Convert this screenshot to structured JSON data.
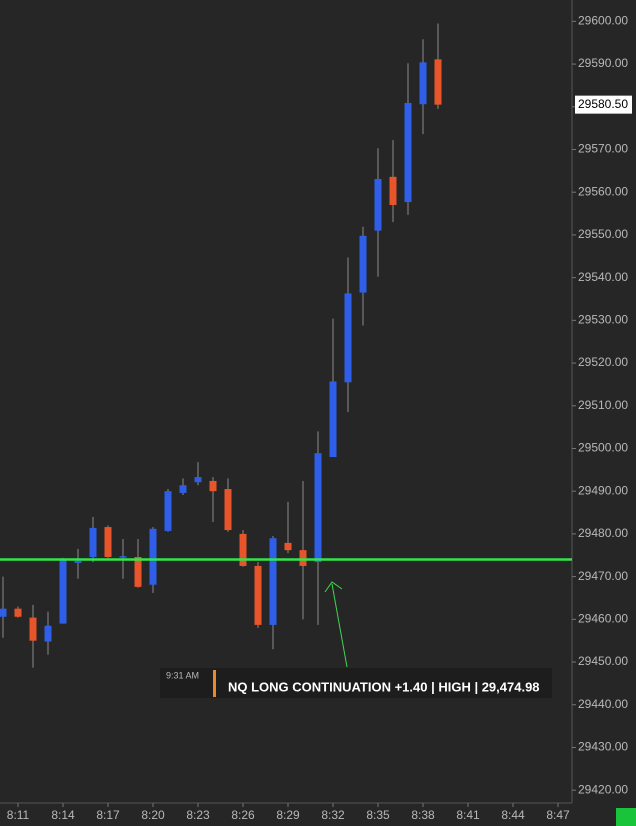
{
  "chart_data": {
    "type": "candlestick",
    "categories": [
      null,
      "8:11",
      null,
      null,
      "8:14",
      null,
      null,
      "8:17",
      null,
      null,
      "8:20",
      null,
      null,
      "8:23",
      null,
      null,
      "8:26",
      null,
      null,
      "8:29",
      null,
      null,
      "8:32",
      null,
      null,
      "8:35",
      null,
      null,
      "8:38",
      null,
      null,
      "8:41",
      null,
      null,
      "8:44",
      null,
      null,
      "8:47"
    ],
    "open": [
      29460.6,
      29462.5,
      29460.4,
      29454.8,
      29459,
      29473.2,
      29474.6,
      29481.6,
      29474.6,
      29474.6,
      29468.1,
      29480.7,
      29489.6,
      29492.1,
      29492.4,
      29490.5,
      29480,
      29472.5,
      29458.7,
      29477.9,
      29476.2,
      29473.4,
      29498,
      29515.5,
      29536.5,
      29551,
      29563.6,
      29557.7,
      29580.6,
      29591.1,
      null,
      null,
      null,
      null,
      null,
      null,
      null,
      null
    ],
    "high": [
      29470,
      29463,
      29463.4,
      29461.8,
      29474.4,
      29476.5,
      29484,
      29482,
      29478.8,
      29478.8,
      29481.6,
      29490.5,
      29493,
      29496.8,
      29493.3,
      29493,
      29480.9,
      29473.4,
      29479.5,
      29487.5,
      29492.4,
      29504,
      29530.4,
      29544.7,
      29551.9,
      29570.3,
      29572.2,
      29590.2,
      29595.8,
      29599.5,
      null,
      null,
      null,
      null,
      null,
      null,
      null,
      null
    ],
    "low": [
      29455.7,
      29460.4,
      29448.7,
      29451.7,
      29459,
      29469.5,
      29473.4,
      29474.4,
      29469.5,
      29467.4,
      29466.2,
      29480.5,
      29489.1,
      29491.4,
      29482.8,
      29480.5,
      29472.3,
      29458,
      29453,
      29475.5,
      29460,
      29458.7,
      29498,
      29508.5,
      29528.8,
      29540.2,
      29553,
      29554.7,
      29573.6,
      29579.5,
      null,
      null,
      null,
      null,
      null,
      null,
      null,
      null
    ],
    "close": [
      29462.5,
      29460.6,
      29455,
      29458.5,
      29473.9,
      29473.7,
      29481.4,
      29474.6,
      29474.8,
      29467.6,
      29481.2,
      29490,
      29491.4,
      29493.3,
      29490,
      29480.9,
      29472.5,
      29458.7,
      29479,
      29476.2,
      29472.5,
      29498.9,
      29515.7,
      29536.3,
      29549.8,
      29563.1,
      29557,
      29580.9,
      29590.4,
      29580.5,
      null,
      null,
      null,
      null,
      null,
      null,
      null,
      null
    ],
    "up_color": "#2f5fe8",
    "down_color": "#e8552a",
    "wick_color": "#8a8a8a",
    "ylim": [
      29417,
      29605
    ],
    "yticks": [
      {
        "value": 29420,
        "label": "29420.00"
      },
      {
        "value": 29430,
        "label": "29430.00"
      },
      {
        "value": 29440,
        "label": "29440.00"
      },
      {
        "value": 29450,
        "label": "29450.00"
      },
      {
        "value": 29460,
        "label": "29460.00"
      },
      {
        "value": 29470,
        "label": "29470.00"
      },
      {
        "value": 29480,
        "label": "29480.00"
      },
      {
        "value": 29490,
        "label": "29490.00"
      },
      {
        "value": 29500,
        "label": "29500.00"
      },
      {
        "value": 29510,
        "label": "29510.00"
      },
      {
        "value": 29520,
        "label": "29520.00"
      },
      {
        "value": 29530,
        "label": "29530.00"
      },
      {
        "value": 29540,
        "label": "29540.00"
      },
      {
        "value": 29550,
        "label": "29550.00"
      },
      {
        "value": 29560,
        "label": "29560.00"
      },
      {
        "value": 29570,
        "label": "29570.00"
      },
      {
        "value": 29580,
        "label": "29580.00"
      },
      {
        "value": 29590,
        "label": "29590.00"
      },
      {
        "value": 29600,
        "label": "29600.00"
      }
    ],
    "last_price": {
      "value": 29580.5,
      "label": "29580.50"
    },
    "level_line": {
      "value": 29474,
      "color": "#2ee84a"
    },
    "alert": {
      "time": "9:31 AM",
      "text": "NQ LONG CONTINUATION +1.40 | HIGH | 29,474.98"
    }
  }
}
